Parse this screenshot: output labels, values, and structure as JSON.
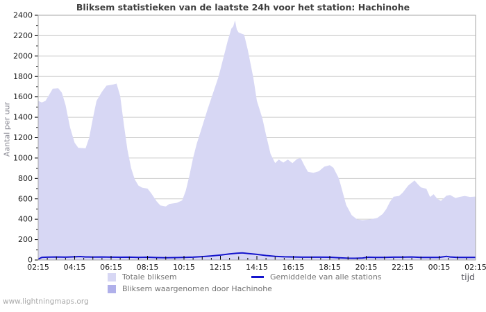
{
  "title": "Bliksem statistieken van de laatste 24h voor het station: Hachinohe",
  "watermark": "www.lightningmaps.org",
  "y_axis": {
    "label": "Aantal per uur",
    "min": 0,
    "max": 2400,
    "major_step": 200,
    "minor_step": 100,
    "tick_labels": [
      "0",
      "200",
      "400",
      "600",
      "800",
      "1000",
      "1200",
      "1400",
      "1600",
      "1800",
      "2000",
      "2200",
      "2400"
    ]
  },
  "x_axis": {
    "label": "tijd",
    "tick_labels": [
      "02:15",
      "04:15",
      "06:15",
      "08:15",
      "10:15",
      "12:15",
      "14:15",
      "16:15",
      "18:15",
      "20:15",
      "22:15",
      "00:15",
      "02:15"
    ],
    "hours_span": 24
  },
  "legend": {
    "total": {
      "label": "Totale bliksem",
      "color": "#d7d7f4"
    },
    "station": {
      "label": "Bliksem waargenomen door Hachinohe",
      "color": "#b0b0ea"
    },
    "average": {
      "label": "Gemiddelde van alle stations",
      "color": "#1414cc"
    }
  },
  "colors": {
    "plot_border": "#a6a6a6",
    "gridline": "#cdcdcd",
    "tick": "#000000",
    "axis_text": "#1a1a1a",
    "area_total": "#d7d7f4",
    "area_station": "#b0b0ea",
    "line_average": "#1414cc"
  },
  "chart_data": {
    "type": "area",
    "title": "Bliksem statistieken van de laatste 24h voor het station: Hachinohe",
    "xlabel": "tijd",
    "ylabel": "Aantal per uur",
    "ylim": [
      0,
      2400
    ],
    "x_unit": "hours since 02:15",
    "x_range": [
      0,
      24
    ],
    "grid": true,
    "legend_position": "bottom",
    "series": [
      {
        "name": "Totale bliksem",
        "style": "area",
        "color": "#d7d7f4",
        "points": [
          [
            0,
            1560
          ],
          [
            0.2,
            1545
          ],
          [
            0.4,
            1560
          ],
          [
            0.6,
            1620
          ],
          [
            0.8,
            1680
          ],
          [
            1.1,
            1685
          ],
          [
            1.3,
            1640
          ],
          [
            1.5,
            1520
          ],
          [
            1.75,
            1300
          ],
          [
            2,
            1150
          ],
          [
            2.2,
            1100
          ],
          [
            2.6,
            1095
          ],
          [
            2.8,
            1200
          ],
          [
            3,
            1390
          ],
          [
            3.2,
            1560
          ],
          [
            3.5,
            1650
          ],
          [
            3.75,
            1710
          ],
          [
            4.1,
            1720
          ],
          [
            4.3,
            1730
          ],
          [
            4.5,
            1610
          ],
          [
            4.7,
            1330
          ],
          [
            4.9,
            1080
          ],
          [
            5.1,
            900
          ],
          [
            5.3,
            790
          ],
          [
            5.5,
            730
          ],
          [
            5.7,
            710
          ],
          [
            6,
            700
          ],
          [
            6.2,
            655
          ],
          [
            6.5,
            575
          ],
          [
            6.7,
            535
          ],
          [
            7,
            525
          ],
          [
            7.2,
            550
          ],
          [
            7.6,
            560
          ],
          [
            7.9,
            585
          ],
          [
            8.1,
            680
          ],
          [
            8.3,
            830
          ],
          [
            8.5,
            1000
          ],
          [
            8.7,
            1140
          ],
          [
            9,
            1310
          ],
          [
            9.3,
            1480
          ],
          [
            9.6,
            1640
          ],
          [
            9.9,
            1800
          ],
          [
            10.2,
            2010
          ],
          [
            10.4,
            2150
          ],
          [
            10.6,
            2270
          ],
          [
            10.7,
            2290
          ],
          [
            10.8,
            2350
          ],
          [
            10.9,
            2260
          ],
          [
            11,
            2230
          ],
          [
            11.3,
            2210
          ],
          [
            11.5,
            2060
          ],
          [
            11.8,
            1790
          ],
          [
            12,
            1560
          ],
          [
            12.3,
            1390
          ],
          [
            12.5,
            1230
          ],
          [
            12.75,
            1040
          ],
          [
            13,
            950
          ],
          [
            13.2,
            985
          ],
          [
            13.45,
            955
          ],
          [
            13.7,
            985
          ],
          [
            13.95,
            950
          ],
          [
            14.2,
            990
          ],
          [
            14.4,
            1000
          ],
          [
            14.6,
            930
          ],
          [
            14.8,
            865
          ],
          [
            15.1,
            855
          ],
          [
            15.4,
            870
          ],
          [
            15.7,
            915
          ],
          [
            16,
            930
          ],
          [
            16.2,
            905
          ],
          [
            16.5,
            800
          ],
          [
            16.7,
            670
          ],
          [
            16.9,
            540
          ],
          [
            17.2,
            440
          ],
          [
            17.5,
            398
          ],
          [
            17.8,
            390
          ],
          [
            18.2,
            398
          ],
          [
            18.6,
            412
          ],
          [
            18.9,
            450
          ],
          [
            19.1,
            500
          ],
          [
            19.3,
            570
          ],
          [
            19.5,
            620
          ],
          [
            19.8,
            628
          ],
          [
            20,
            660
          ],
          [
            20.3,
            730
          ],
          [
            20.65,
            780
          ],
          [
            20.85,
            740
          ],
          [
            21,
            712
          ],
          [
            21.3,
            698
          ],
          [
            21.5,
            618
          ],
          [
            21.7,
            645
          ],
          [
            21.9,
            600
          ],
          [
            22.1,
            580
          ],
          [
            22.4,
            630
          ],
          [
            22.6,
            638
          ],
          [
            22.9,
            608
          ],
          [
            23.1,
            618
          ],
          [
            23.4,
            628
          ],
          [
            23.7,
            618
          ],
          [
            24,
            622
          ]
        ]
      },
      {
        "name": "Bliksem waargenomen door Hachinohe",
        "style": "area",
        "color": "#b0b0ea",
        "points": [
          [
            0,
            0
          ],
          [
            24,
            0
          ]
        ]
      },
      {
        "name": "Gemiddelde van alle stations",
        "style": "line",
        "color": "#1414cc",
        "points": [
          [
            0,
            8
          ],
          [
            0.2,
            26
          ],
          [
            0.5,
            28
          ],
          [
            1,
            30
          ],
          [
            1.5,
            28
          ],
          [
            2,
            31
          ],
          [
            2.3,
            34
          ],
          [
            2.6,
            30
          ],
          [
            3,
            29
          ],
          [
            3.5,
            30
          ],
          [
            4,
            28
          ],
          [
            4.5,
            27
          ],
          [
            5,
            28
          ],
          [
            5.5,
            25
          ],
          [
            6,
            27
          ],
          [
            6.5,
            24
          ],
          [
            7,
            22
          ],
          [
            7.5,
            24
          ],
          [
            8,
            25
          ],
          [
            8.5,
            28
          ],
          [
            9,
            33
          ],
          [
            9.5,
            40
          ],
          [
            10,
            48
          ],
          [
            10.5,
            60
          ],
          [
            10.9,
            66
          ],
          [
            11.2,
            70
          ],
          [
            11.5,
            64
          ],
          [
            12,
            55
          ],
          [
            12.5,
            44
          ],
          [
            13,
            36
          ],
          [
            13.5,
            31
          ],
          [
            14,
            30
          ],
          [
            14.5,
            28
          ],
          [
            15,
            28
          ],
          [
            15.5,
            28
          ],
          [
            16,
            27
          ],
          [
            16.5,
            22
          ],
          [
            17,
            18
          ],
          [
            17.4,
            17
          ],
          [
            17.8,
            20
          ],
          [
            18.1,
            27
          ],
          [
            18.5,
            26
          ],
          [
            19,
            26
          ],
          [
            19.5,
            28
          ],
          [
            20,
            28
          ],
          [
            20.5,
            30
          ],
          [
            21,
            26
          ],
          [
            21.5,
            25
          ],
          [
            22,
            26
          ],
          [
            22.4,
            36
          ],
          [
            22.6,
            30
          ],
          [
            23,
            26
          ],
          [
            23.5,
            26
          ],
          [
            24,
            26
          ]
        ]
      }
    ]
  }
}
